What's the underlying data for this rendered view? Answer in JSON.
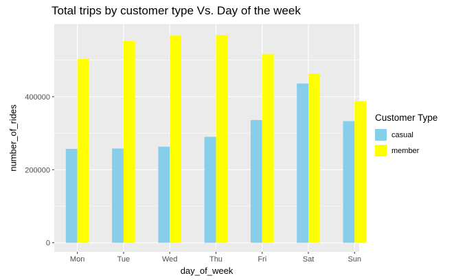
{
  "chart_data": {
    "type": "bar",
    "title": "Total trips by customer type Vs. Day of the week",
    "xlabel": "day_of_week",
    "ylabel": "number_of_rides",
    "categories": [
      "Mon",
      "Tue",
      "Wed",
      "Thu",
      "Fri",
      "Sat",
      "Sun"
    ],
    "series": [
      {
        "name": "casual",
        "color": "#87CEEB",
        "values": [
          257000,
          258000,
          263000,
          290000,
          336000,
          436000,
          333000
        ]
      },
      {
        "name": "member",
        "color": "#FFFF00",
        "values": [
          503000,
          552000,
          567000,
          569000,
          517000,
          463000,
          388000
        ]
      }
    ],
    "yticks": [
      0,
      200000,
      400000
    ],
    "ylim": [
      -25000,
      599000
    ],
    "grid": true,
    "panel_background": "#EBEBEB",
    "legend": {
      "title": "Customer Type",
      "position": "right"
    }
  }
}
